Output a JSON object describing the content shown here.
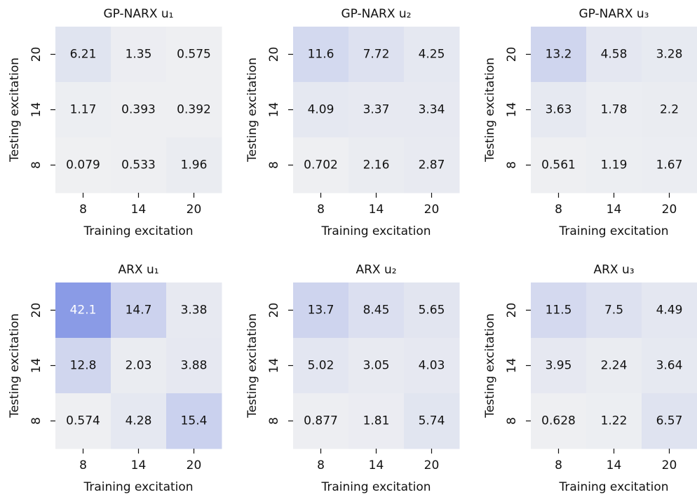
{
  "chart_data": [
    {
      "type": "heatmap",
      "title": "GP-NARX u₁",
      "xlabel": "Training excitation",
      "ylabel": "Testing excitation",
      "x": [
        "8",
        "14",
        "20"
      ],
      "y": [
        "20",
        "14",
        "8"
      ],
      "values": [
        [
          6.21,
          1.35,
          0.575
        ],
        [
          1.17,
          0.393,
          0.392
        ],
        [
          0.079,
          0.533,
          1.96
        ]
      ],
      "colors": [
        "#eff0f2",
        "#8a9be6"
      ]
    },
    {
      "type": "heatmap",
      "title": "GP-NARX u₂",
      "xlabel": "Training excitation",
      "ylabel": "Testing excitation",
      "x": [
        "8",
        "14",
        "20"
      ],
      "y": [
        "20",
        "14",
        "8"
      ],
      "values": [
        [
          11.6,
          7.72,
          4.25
        ],
        [
          4.09,
          3.37,
          3.34
        ],
        [
          0.702,
          2.16,
          2.87
        ]
      ],
      "colors": [
        "#eff0f2",
        "#8a9be6"
      ]
    },
    {
      "type": "heatmap",
      "title": "GP-NARX u₃",
      "xlabel": "Training excitation",
      "ylabel": "Testing excitation",
      "x": [
        "8",
        "14",
        "20"
      ],
      "y": [
        "20",
        "14",
        "8"
      ],
      "values": [
        [
          13.2,
          4.58,
          3.28
        ],
        [
          3.63,
          1.78,
          2.2
        ],
        [
          0.561,
          1.19,
          1.67
        ]
      ],
      "colors": [
        "#eff0f2",
        "#8a9be6"
      ]
    },
    {
      "type": "heatmap",
      "title": "ARX u₁",
      "xlabel": "Training excitation",
      "ylabel": "Testing excitation",
      "x": [
        "8",
        "14",
        "20"
      ],
      "y": [
        "20",
        "14",
        "8"
      ],
      "values": [
        [
          42.1,
          14.7,
          3.38
        ],
        [
          12.8,
          2.03,
          3.88
        ],
        [
          0.574,
          4.28,
          15.4
        ]
      ],
      "colors": [
        "#eff0f2",
        "#8a9be6"
      ]
    },
    {
      "type": "heatmap",
      "title": "ARX u₂",
      "xlabel": "Training excitation",
      "ylabel": "Testing excitation",
      "x": [
        "8",
        "14",
        "20"
      ],
      "y": [
        "20",
        "14",
        "8"
      ],
      "values": [
        [
          13.7,
          8.45,
          5.65
        ],
        [
          5.02,
          3.05,
          4.03
        ],
        [
          0.877,
          1.81,
          5.74
        ]
      ],
      "colors": [
        "#eff0f2",
        "#8a9be6"
      ]
    },
    {
      "type": "heatmap",
      "title": "ARX u₃",
      "xlabel": "Training excitation",
      "ylabel": "Testing excitation",
      "x": [
        "8",
        "14",
        "20"
      ],
      "y": [
        "20",
        "14",
        "8"
      ],
      "values": [
        [
          11.5,
          7.5,
          4.49
        ],
        [
          3.95,
          2.24,
          3.64
        ],
        [
          0.628,
          1.22,
          6.57
        ]
      ],
      "colors": [
        "#eff0f2",
        "#8a9be6"
      ]
    }
  ]
}
